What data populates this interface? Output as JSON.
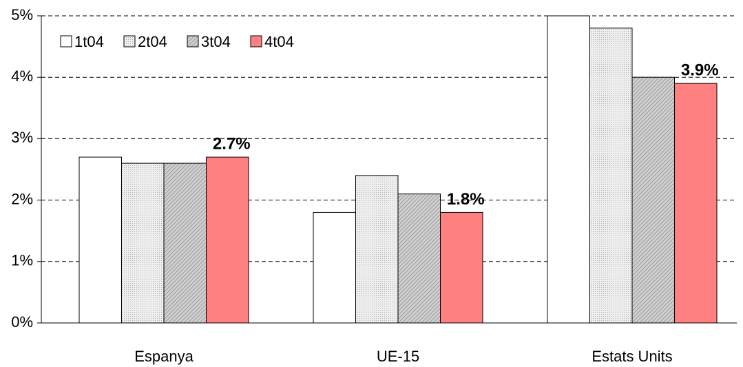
{
  "chart_data": {
    "type": "bar",
    "categories": [
      "Espanya",
      "UE-15",
      "Estats Units"
    ],
    "series": [
      {
        "name": "1t04",
        "color": "#ffffff",
        "values": [
          2.7,
          1.8,
          5.0
        ]
      },
      {
        "name": "2t04",
        "color": "#e6e6e6",
        "pattern": "dots",
        "values": [
          2.6,
          2.4,
          4.8
        ]
      },
      {
        "name": "3t04",
        "color": "#c8c8c8",
        "pattern": "hatch",
        "values": [
          2.6,
          2.1,
          4.0
        ]
      },
      {
        "name": "4t04",
        "color": "#ff8080",
        "values": [
          2.7,
          1.8,
          3.9
        ],
        "value_labels": [
          "2.7%",
          "1.8%",
          "3.9%"
        ]
      }
    ],
    "ylim": [
      0,
      5
    ],
    "yticks": [
      {
        "value": 0,
        "label": "0%"
      },
      {
        "value": 1,
        "label": "1%"
      },
      {
        "value": 2,
        "label": "2%"
      },
      {
        "value": 3,
        "label": "3%"
      },
      {
        "value": 4,
        "label": "4%"
      },
      {
        "value": 5,
        "label": "5%"
      }
    ],
    "grid": true,
    "legend": "top-left"
  }
}
